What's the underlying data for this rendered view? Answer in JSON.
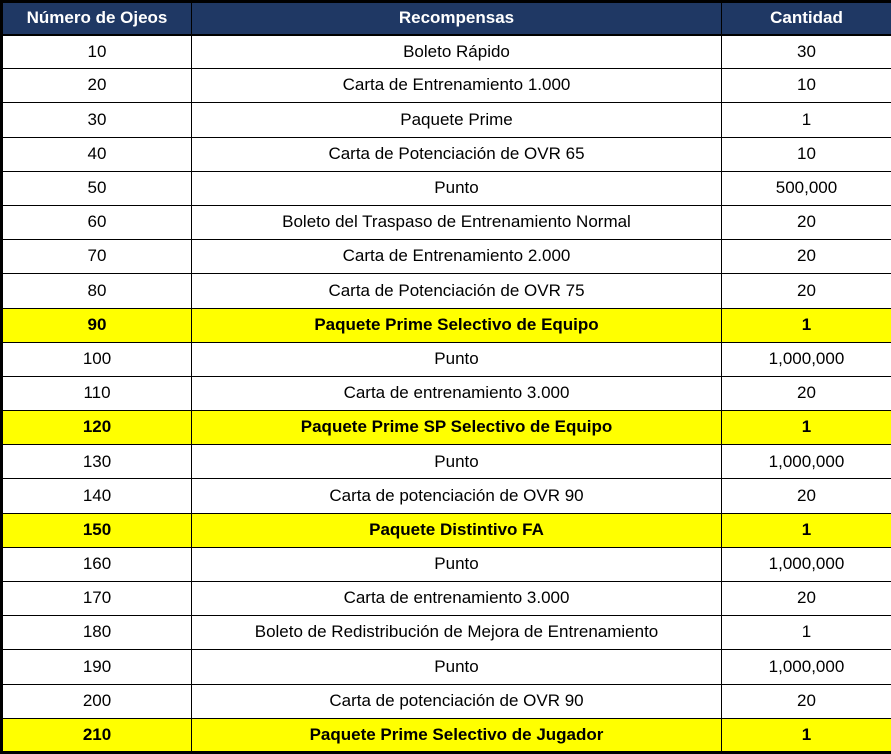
{
  "table": {
    "title": "rewards-table",
    "colors": {
      "header_bg": "#1F3864",
      "header_text": "#FFFFFF",
      "highlight_bg": "#FFFF00",
      "row_bg": "#FFFFFF",
      "border": "#000000",
      "text": "#000000"
    },
    "columns": [
      {
        "key": "ojeos",
        "label": "Número de Ojeos"
      },
      {
        "key": "recompensa",
        "label": "Recompensas"
      },
      {
        "key": "cantidad",
        "label": "Cantidad"
      }
    ],
    "rows": [
      {
        "ojeos": "10",
        "recompensa": "Boleto Rápido",
        "cantidad": "30",
        "highlight": false
      },
      {
        "ojeos": "20",
        "recompensa": "Carta de Entrenamiento 1.000",
        "cantidad": "10",
        "highlight": false
      },
      {
        "ojeos": "30",
        "recompensa": "Paquete Prime",
        "cantidad": "1",
        "highlight": false
      },
      {
        "ojeos": "40",
        "recompensa": "Carta de Potenciación de OVR 65",
        "cantidad": "10",
        "highlight": false
      },
      {
        "ojeos": "50",
        "recompensa": "Punto",
        "cantidad": "500,000",
        "highlight": false
      },
      {
        "ojeos": "60",
        "recompensa": "Boleto del Traspaso de Entrenamiento Normal",
        "cantidad": "20",
        "highlight": false
      },
      {
        "ojeos": "70",
        "recompensa": "Carta de Entrenamiento 2.000",
        "cantidad": "20",
        "highlight": false
      },
      {
        "ojeos": "80",
        "recompensa": "Carta de Potenciación de OVR 75",
        "cantidad": "20",
        "highlight": false
      },
      {
        "ojeos": "90",
        "recompensa": "Paquete Prime Selectivo de Equipo",
        "cantidad": "1",
        "highlight": true
      },
      {
        "ojeos": "100",
        "recompensa": "Punto",
        "cantidad": "1,000,000",
        "highlight": false
      },
      {
        "ojeos": "110",
        "recompensa": "Carta de entrenamiento 3.000",
        "cantidad": "20",
        "highlight": false
      },
      {
        "ojeos": "120",
        "recompensa": "Paquete Prime SP Selectivo de Equipo",
        "cantidad": "1",
        "highlight": true
      },
      {
        "ojeos": "130",
        "recompensa": "Punto",
        "cantidad": "1,000,000",
        "highlight": false
      },
      {
        "ojeos": "140",
        "recompensa": "Carta de potenciación de OVR 90",
        "cantidad": "20",
        "highlight": false
      },
      {
        "ojeos": "150",
        "recompensa": "Paquete Distintivo FA",
        "cantidad": "1",
        "highlight": true
      },
      {
        "ojeos": "160",
        "recompensa": "Punto",
        "cantidad": "1,000,000",
        "highlight": false
      },
      {
        "ojeos": "170",
        "recompensa": "Carta de entrenamiento 3.000",
        "cantidad": "20",
        "highlight": false
      },
      {
        "ojeos": "180",
        "recompensa": "Boleto de Redistribución de Mejora de Entrenamiento",
        "cantidad": "1",
        "highlight": false
      },
      {
        "ojeos": "190",
        "recompensa": "Punto",
        "cantidad": "1,000,000",
        "highlight": false
      },
      {
        "ojeos": "200",
        "recompensa": "Carta de potenciación de OVR 90",
        "cantidad": "20",
        "highlight": false
      },
      {
        "ojeos": "210",
        "recompensa": "Paquete Prime Selectivo de Jugador",
        "cantidad": "1",
        "highlight": true
      }
    ]
  }
}
